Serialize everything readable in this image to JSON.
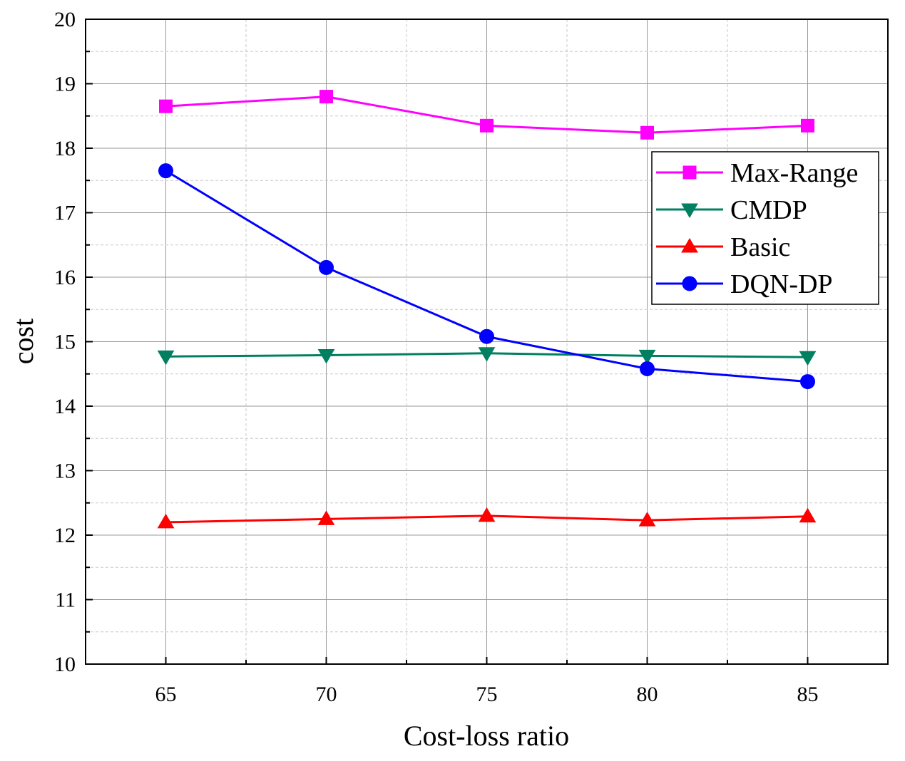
{
  "chart_data": {
    "type": "line",
    "title": "",
    "xlabel": "Cost-loss ratio",
    "ylabel": "cost",
    "x": [
      65,
      70,
      75,
      80,
      85
    ],
    "xlim": [
      62.5,
      87.5
    ],
    "ylim": [
      10,
      20
    ],
    "x_ticks": [
      "65",
      "70",
      "75",
      "80",
      "85"
    ],
    "y_ticks": [
      "10",
      "11",
      "12",
      "13",
      "14",
      "15",
      "16",
      "17",
      "18",
      "19",
      "20"
    ],
    "grid": true,
    "legend_position": "top-right",
    "series": [
      {
        "name": "Max-Range",
        "color": "#ff00ff",
        "marker": "square",
        "values": [
          18.65,
          18.8,
          18.35,
          18.24,
          18.35
        ]
      },
      {
        "name": "CMDP",
        "color": "#008060",
        "marker": "triangle-down",
        "values": [
          14.77,
          14.79,
          14.82,
          14.78,
          14.76
        ]
      },
      {
        "name": "Basic",
        "color": "#ff0000",
        "marker": "triangle-up",
        "values": [
          12.2,
          12.25,
          12.3,
          12.23,
          12.29
        ]
      },
      {
        "name": "DQN-DP",
        "color": "#0000ff",
        "marker": "circle",
        "values": [
          17.65,
          16.15,
          15.08,
          14.58,
          14.38
        ]
      }
    ]
  }
}
